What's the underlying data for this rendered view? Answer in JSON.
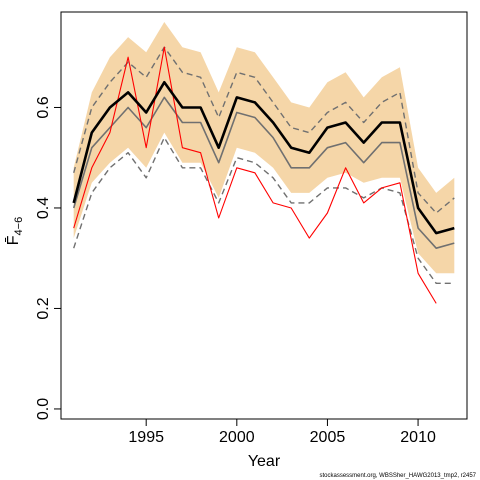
{
  "chart_data": {
    "type": "line",
    "xlabel": "Year",
    "ylabel": "F̄",
    "ylabel_subscript": "4−6",
    "xlim": [
      1990.3,
      2012.7
    ],
    "ylim": [
      -0.02,
      0.79
    ],
    "x_ticks": [
      {
        "value": 1995,
        "label": "1995"
      },
      {
        "value": 2000,
        "label": "2000"
      },
      {
        "value": 2005,
        "label": "2005"
      },
      {
        "value": 2010,
        "label": "2010"
      }
    ],
    "y_ticks": [
      {
        "value": 0.0,
        "label": "0.0"
      },
      {
        "value": 0.2,
        "label": "0.2"
      },
      {
        "value": 0.4,
        "label": "0.4"
      },
      {
        "value": 0.6,
        "label": "0.6"
      }
    ],
    "x": [
      1991,
      1992,
      1993,
      1994,
      1995,
      1996,
      1997,
      1998,
      1999,
      2000,
      2001,
      2002,
      2003,
      2004,
      2005,
      2006,
      2007,
      2008,
      2009,
      2010,
      2011,
      2012
    ],
    "band": {
      "color": "#f5d6a8",
      "lower": [
        0.34,
        0.45,
        0.49,
        0.52,
        0.48,
        0.55,
        0.49,
        0.49,
        0.42,
        0.52,
        0.51,
        0.48,
        0.43,
        0.43,
        0.46,
        0.47,
        0.45,
        0.46,
        0.46,
        0.31,
        0.27,
        0.27
      ],
      "upper": [
        0.48,
        0.63,
        0.7,
        0.74,
        0.71,
        0.77,
        0.72,
        0.71,
        0.63,
        0.72,
        0.71,
        0.66,
        0.61,
        0.6,
        0.65,
        0.67,
        0.62,
        0.66,
        0.68,
        0.48,
        0.43,
        0.46
      ]
    },
    "series": [
      {
        "role": "upper-dashed",
        "color": "#707070",
        "dash": true,
        "width": 1.4,
        "values": [
          0.47,
          0.6,
          0.65,
          0.69,
          0.66,
          0.72,
          0.67,
          0.66,
          0.58,
          0.67,
          0.66,
          0.61,
          0.56,
          0.55,
          0.59,
          0.61,
          0.57,
          0.61,
          0.63,
          0.43,
          0.39,
          0.42
        ]
      },
      {
        "role": "lower-dashed",
        "color": "#707070",
        "dash": true,
        "width": 1.4,
        "values": [
          0.32,
          0.43,
          0.48,
          0.51,
          0.46,
          0.54,
          0.48,
          0.48,
          0.41,
          0.5,
          0.49,
          0.46,
          0.41,
          0.41,
          0.44,
          0.44,
          0.42,
          0.44,
          0.43,
          0.3,
          0.25,
          0.25
        ]
      },
      {
        "role": "median",
        "color": "#707070",
        "dash": false,
        "width": 1.6,
        "values": [
          0.4,
          0.52,
          0.56,
          0.6,
          0.56,
          0.62,
          0.57,
          0.57,
          0.49,
          0.59,
          0.58,
          0.54,
          0.48,
          0.48,
          0.52,
          0.53,
          0.49,
          0.53,
          0.53,
          0.36,
          0.32,
          0.33
        ]
      },
      {
        "role": "assessment",
        "color": "#ff0000",
        "dash": false,
        "width": 1.1,
        "values": [
          0.36,
          0.48,
          0.55,
          0.7,
          0.52,
          0.72,
          0.52,
          0.51,
          0.38,
          0.48,
          0.47,
          0.41,
          0.4,
          0.34,
          0.39,
          0.48,
          0.41,
          0.44,
          0.45,
          0.27,
          0.21,
          null
        ]
      },
      {
        "role": "mean",
        "color": "#000000",
        "dash": false,
        "width": 2.6,
        "values": [
          0.41,
          0.55,
          0.6,
          0.63,
          0.59,
          0.65,
          0.6,
          0.6,
          0.52,
          0.62,
          0.61,
          0.57,
          0.52,
          0.51,
          0.56,
          0.57,
          0.53,
          0.57,
          0.57,
          0.4,
          0.35,
          0.36
        ]
      }
    ]
  },
  "footer": "stockassessment.org, WBSSher_HAWG2013_tmp2, r2457"
}
